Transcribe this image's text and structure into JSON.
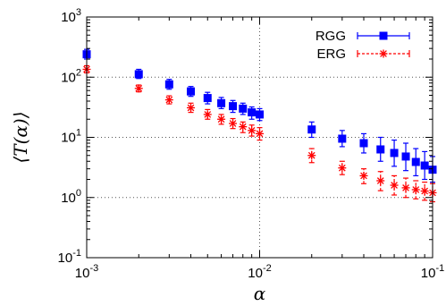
{
  "chart_data": {
    "type": "scatter",
    "title": "",
    "xlabel": "α",
    "ylabel": "⟨T(α)⟩",
    "xscale": "log",
    "yscale": "log",
    "xlim": [
      0.001,
      0.1
    ],
    "ylim": [
      0.1,
      1000
    ],
    "x_ticks": [
      {
        "base": "10",
        "exp": "-3",
        "value": 0.001
      },
      {
        "base": "10",
        "exp": "-2",
        "value": 0.01
      },
      {
        "base": "10",
        "exp": "-1",
        "value": 0.1
      }
    ],
    "y_ticks": [
      {
        "base": "10",
        "exp": "-1",
        "value": 0.1
      },
      {
        "base": "10",
        "exp": "0",
        "value": 1
      },
      {
        "base": "10",
        "exp": "1",
        "value": 10
      },
      {
        "base": "10",
        "exp": "2",
        "value": 100
      },
      {
        "base": "10",
        "exp": "3",
        "value": 1000
      }
    ],
    "grid": "major, dotted",
    "legend_position": "top-right",
    "series": [
      {
        "name": "RGG",
        "color": "#0000ff",
        "marker": "square",
        "line_style": "solid",
        "points": [
          {
            "x": 0.001,
            "y": 240,
            "ylo": 200,
            "yhi": 290
          },
          {
            "x": 0.002,
            "y": 112,
            "ylo": 95,
            "yhi": 135
          },
          {
            "x": 0.003,
            "y": 76,
            "ylo": 63,
            "yhi": 92
          },
          {
            "x": 0.004,
            "y": 58,
            "ylo": 48,
            "yhi": 70
          },
          {
            "x": 0.005,
            "y": 45,
            "ylo": 36,
            "yhi": 56
          },
          {
            "x": 0.006,
            "y": 37,
            "ylo": 30,
            "yhi": 46
          },
          {
            "x": 0.007,
            "y": 33,
            "ylo": 26,
            "yhi": 41
          },
          {
            "x": 0.008,
            "y": 30,
            "ylo": 24,
            "yhi": 37
          },
          {
            "x": 0.009,
            "y": 26,
            "ylo": 20,
            "yhi": 32
          },
          {
            "x": 0.01,
            "y": 24,
            "ylo": 19,
            "yhi": 30
          },
          {
            "x": 0.02,
            "y": 13.5,
            "ylo": 10,
            "yhi": 18
          },
          {
            "x": 0.03,
            "y": 9.5,
            "ylo": 7,
            "yhi": 13
          },
          {
            "x": 0.04,
            "y": 8,
            "ylo": 5.5,
            "yhi": 11.5
          },
          {
            "x": 0.05,
            "y": 6.3,
            "ylo": 4,
            "yhi": 10
          },
          {
            "x": 0.06,
            "y": 5.5,
            "ylo": 3.3,
            "yhi": 9
          },
          {
            "x": 0.07,
            "y": 4.8,
            "ylo": 2.8,
            "yhi": 8
          },
          {
            "x": 0.08,
            "y": 3.9,
            "ylo": 2.3,
            "yhi": 6.5
          },
          {
            "x": 0.09,
            "y": 3.4,
            "ylo": 2.0,
            "yhi": 5.8
          },
          {
            "x": 0.1,
            "y": 2.9,
            "ylo": 1.8,
            "yhi": 4.8
          }
        ]
      },
      {
        "name": "ERG",
        "color": "#ff0000",
        "marker": "asterisk",
        "line_style": "dashed",
        "points": [
          {
            "x": 0.001,
            "y": 135,
            "ylo": 118,
            "yhi": 155
          },
          {
            "x": 0.002,
            "y": 65,
            "ylo": 57,
            "yhi": 74
          },
          {
            "x": 0.003,
            "y": 42,
            "ylo": 36,
            "yhi": 49
          },
          {
            "x": 0.004,
            "y": 31,
            "ylo": 26,
            "yhi": 37
          },
          {
            "x": 0.005,
            "y": 24,
            "ylo": 20,
            "yhi": 29
          },
          {
            "x": 0.006,
            "y": 20,
            "ylo": 16.5,
            "yhi": 24
          },
          {
            "x": 0.007,
            "y": 17,
            "ylo": 14,
            "yhi": 20.5
          },
          {
            "x": 0.008,
            "y": 15,
            "ylo": 12,
            "yhi": 18
          },
          {
            "x": 0.009,
            "y": 13,
            "ylo": 10.5,
            "yhi": 16
          },
          {
            "x": 0.01,
            "y": 11.5,
            "ylo": 9,
            "yhi": 14.5
          },
          {
            "x": 0.02,
            "y": 5,
            "ylo": 3.8,
            "yhi": 6.5
          },
          {
            "x": 0.03,
            "y": 3.1,
            "ylo": 2.4,
            "yhi": 4.0
          },
          {
            "x": 0.04,
            "y": 2.3,
            "ylo": 1.7,
            "yhi": 3.0
          },
          {
            "x": 0.05,
            "y": 1.9,
            "ylo": 1.3,
            "yhi": 2.7
          },
          {
            "x": 0.06,
            "y": 1.6,
            "ylo": 1.1,
            "yhi": 2.3
          },
          {
            "x": 0.07,
            "y": 1.45,
            "ylo": 1.0,
            "yhi": 2.1
          },
          {
            "x": 0.08,
            "y": 1.35,
            "ylo": 0.95,
            "yhi": 1.9
          },
          {
            "x": 0.09,
            "y": 1.28,
            "ylo": 0.9,
            "yhi": 1.8
          },
          {
            "x": 0.1,
            "y": 1.2,
            "ylo": 0.85,
            "yhi": 1.7
          }
        ]
      }
    ]
  }
}
